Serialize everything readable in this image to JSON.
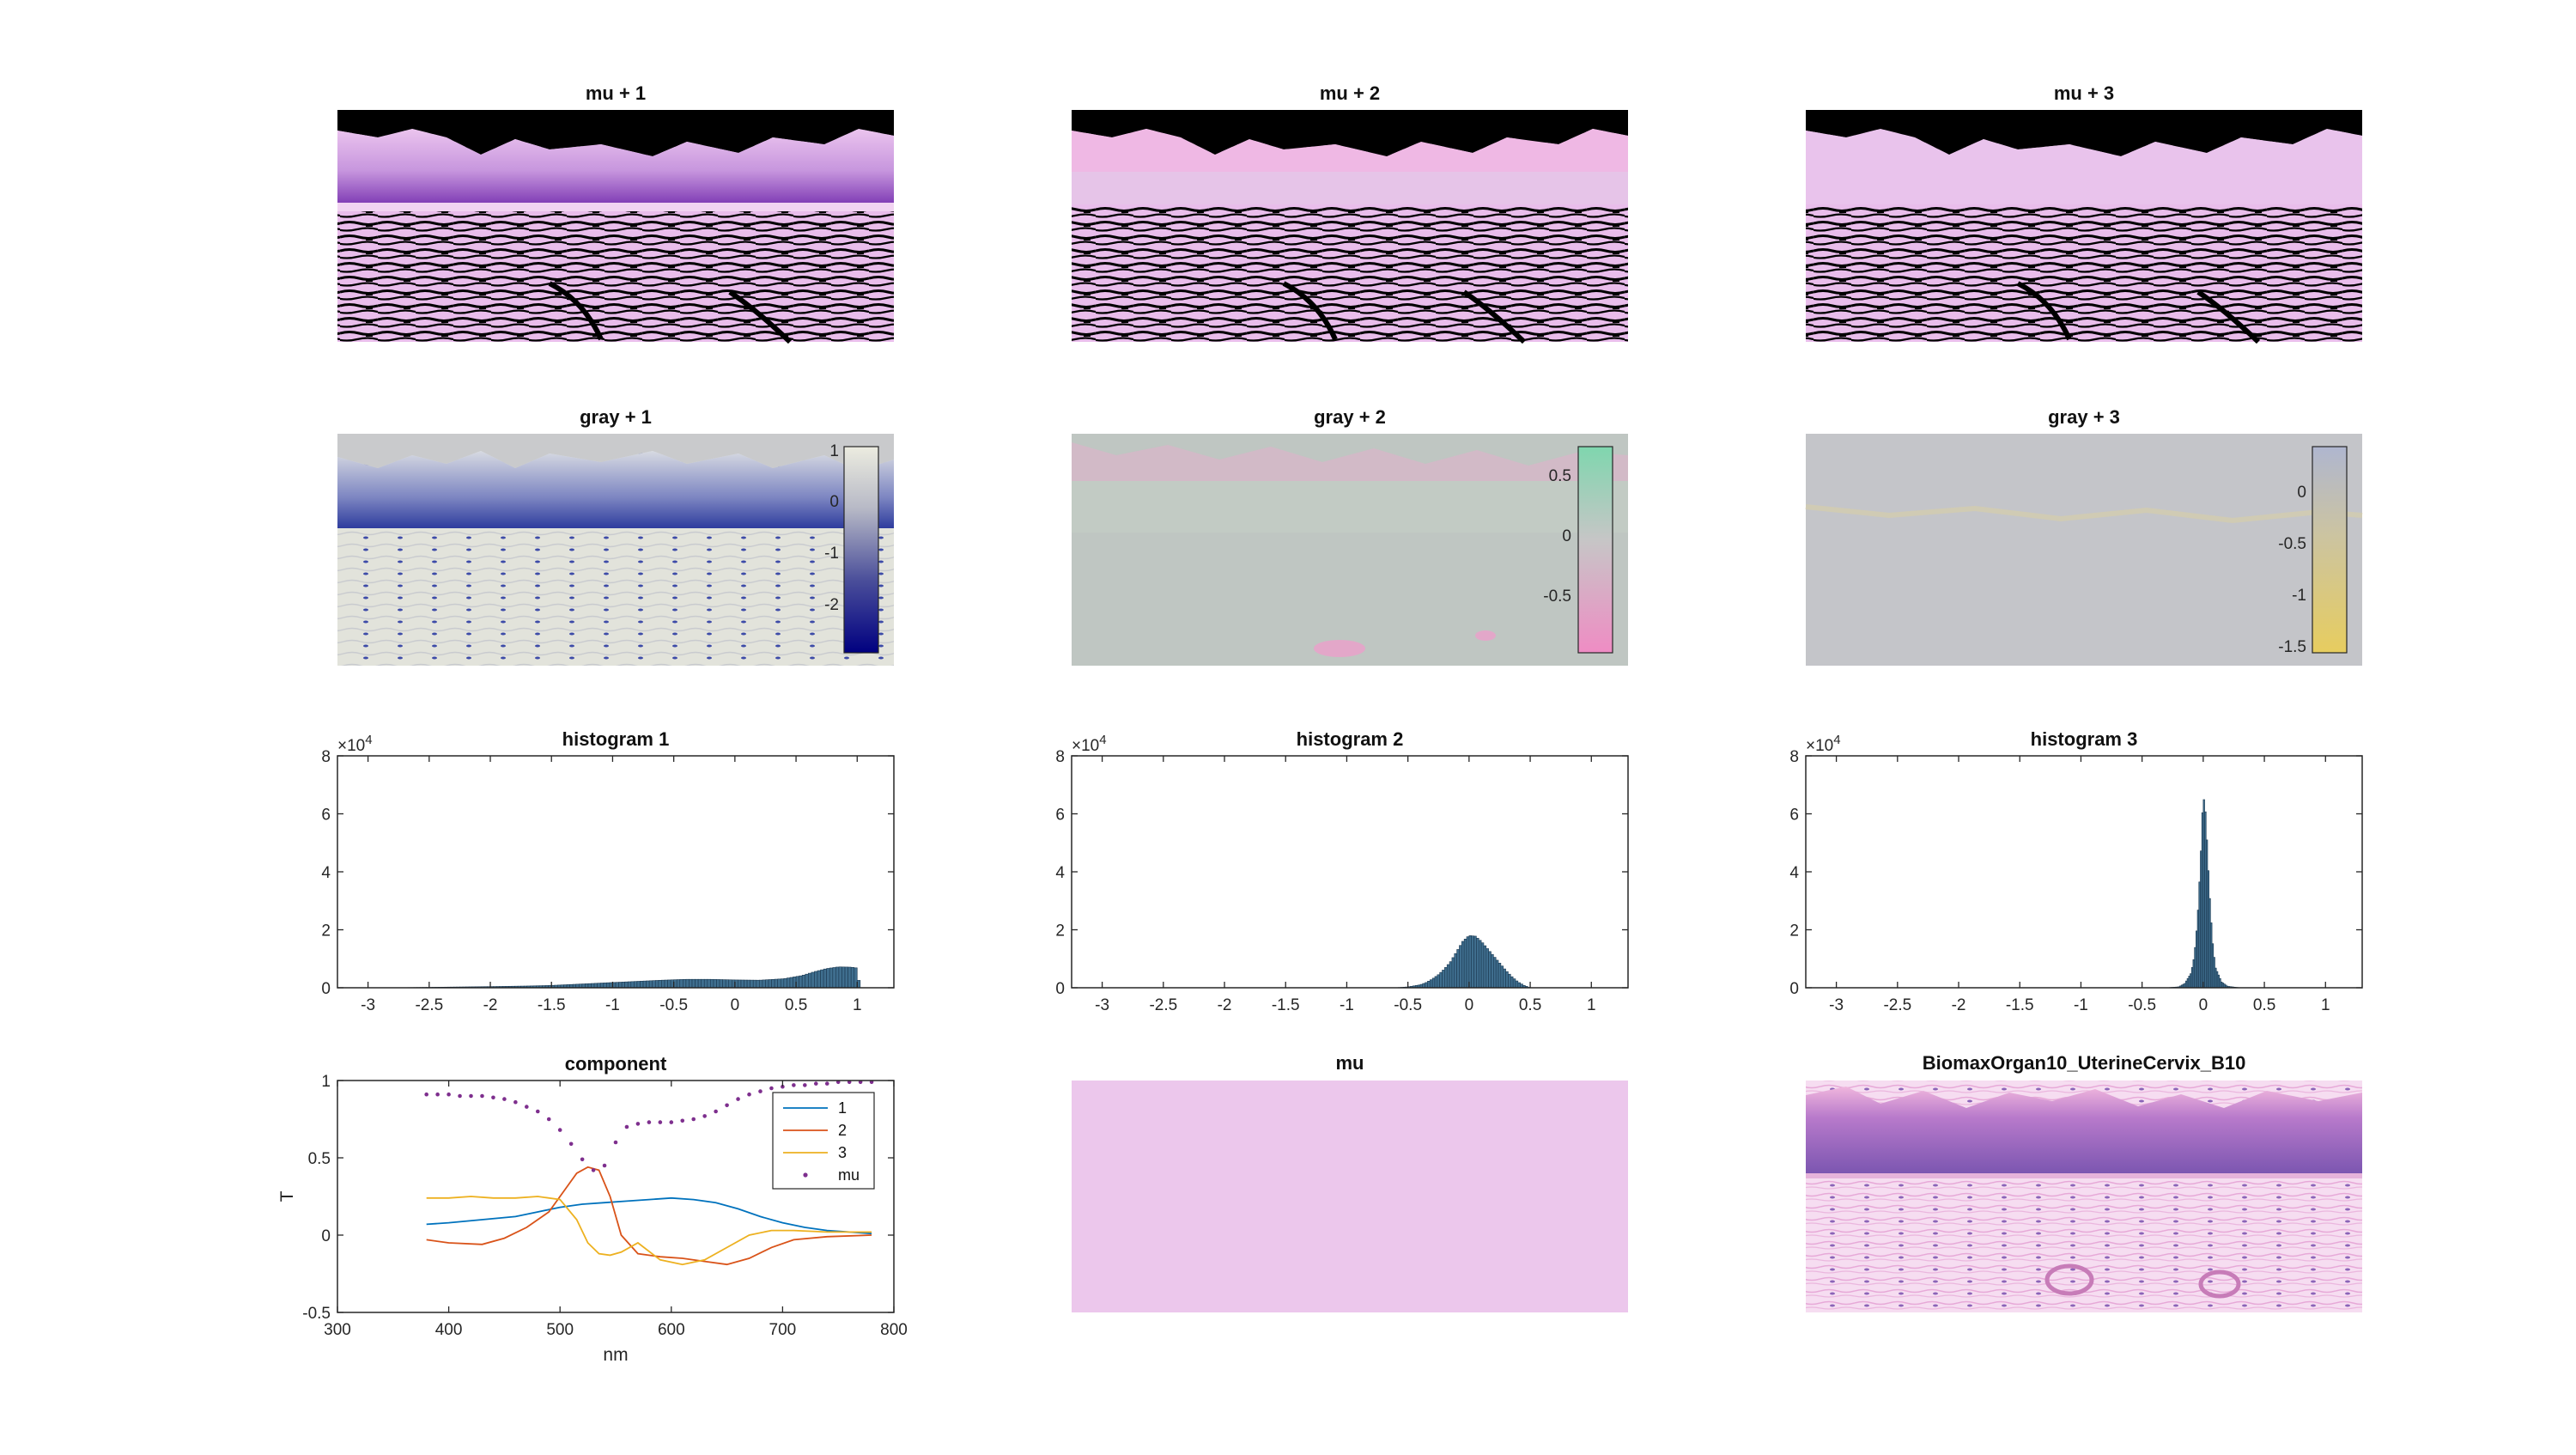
{
  "window": {
    "background": "#ffffff"
  },
  "colors": {
    "series1": "#0072BD",
    "series2": "#D95319",
    "series3": "#EDB120",
    "mu": "#7E2F8E",
    "hist_bar": "#3F6E8E",
    "mu_fill": "#ECC7EC",
    "he_pink": "#EFB8E4",
    "he_purple": "#8E62C2",
    "gray1_low": "#000080",
    "gray1_high": "#ECECE0",
    "gray2_low": "#EF8CC4",
    "gray2_mid": "#C6C6C6",
    "gray2_high": "#7FD6AE",
    "gray3_low": "#E7CD5F",
    "gray3_high": "#AFB6CF"
  },
  "panels": {
    "mu_plus_1": {
      "title": "mu + 1"
    },
    "mu_plus_2": {
      "title": "mu + 2"
    },
    "mu_plus_3": {
      "title": "mu + 3"
    },
    "gray_plus_1": {
      "title": "gray + 1",
      "colorbar_ticks": [
        "1",
        "0",
        "-1",
        "-2"
      ]
    },
    "gray_plus_2": {
      "title": "gray + 2",
      "colorbar_ticks": [
        "0.5",
        "0",
        "-0.5"
      ]
    },
    "gray_plus_3": {
      "title": "gray + 3",
      "colorbar_ticks": [
        "0",
        "-0.5",
        "-1",
        "-1.5"
      ]
    },
    "component": {
      "title": "component"
    },
    "mu": {
      "title": "mu"
    },
    "image": {
      "title": "BiomaxOrgan10_UterineCervix_B10"
    }
  },
  "chart_data": [
    {
      "type": "bar",
      "id": "histogram1",
      "title": "histogram 1",
      "xlim": [
        -3.25,
        1.3
      ],
      "ylim": [
        0,
        80000
      ],
      "y_exponent_label": "×10",
      "y_exponent": "4",
      "xticks": [
        -3,
        -2.5,
        -2,
        -1.5,
        -1,
        -0.5,
        0,
        0.5,
        1
      ],
      "xtick_labels": [
        "-3",
        "-2.5",
        "-2",
        "-1.5",
        "-1",
        "-0.5",
        "0",
        "0.5",
        "1"
      ],
      "yticks": [
        0,
        20000,
        40000,
        60000,
        80000
      ],
      "ytick_labels": [
        "0",
        "2",
        "4",
        "6",
        "8"
      ],
      "bin_width": 0.025,
      "x": [
        -2.8,
        -2.5,
        -2.2,
        -2.0,
        -1.7,
        -1.5,
        -1.3,
        -1.1,
        -1.0,
        -0.8,
        -0.6,
        -0.4,
        -0.2,
        0.0,
        0.2,
        0.4,
        0.55,
        0.65,
        0.75,
        0.85,
        0.95,
        1.0,
        1.02
      ],
      "values": [
        0,
        150,
        300,
        400,
        600,
        800,
        1200,
        1600,
        1800,
        2200,
        2600,
        2900,
        2900,
        2700,
        2600,
        3100,
        4200,
        5500,
        6600,
        7200,
        7100,
        6800,
        0
      ]
    },
    {
      "type": "bar",
      "id": "histogram2",
      "title": "histogram 2",
      "xlim": [
        -3.25,
        1.3
      ],
      "ylim": [
        0,
        80000
      ],
      "y_exponent_label": "×10",
      "y_exponent": "4",
      "xticks": [
        -3,
        -2.5,
        -2,
        -1.5,
        -1,
        -0.5,
        0,
        0.5,
        1
      ],
      "xtick_labels": [
        "-3",
        "-2.5",
        "-2",
        "-1.5",
        "-1",
        "-0.5",
        "0",
        "0.5",
        "1"
      ],
      "yticks": [
        0,
        20000,
        40000,
        60000,
        80000
      ],
      "ytick_labels": [
        "0",
        "2",
        "4",
        "6",
        "8"
      ],
      "bin_width": 0.02,
      "x": [
        -0.6,
        -0.5,
        -0.4,
        -0.35,
        -0.3,
        -0.25,
        -0.2,
        -0.15,
        -0.1,
        -0.05,
        0.0,
        0.05,
        0.1,
        0.15,
        0.2,
        0.25,
        0.3,
        0.35,
        0.4,
        0.45,
        0.5
      ],
      "values": [
        0,
        300,
        1000,
        1800,
        3000,
        4500,
        6500,
        9000,
        12500,
        16000,
        18000,
        17800,
        16000,
        13500,
        11000,
        8500,
        6000,
        3800,
        2000,
        800,
        0
      ]
    },
    {
      "type": "bar",
      "id": "histogram3",
      "title": "histogram 3",
      "xlim": [
        -3.25,
        1.3
      ],
      "ylim": [
        0,
        80000
      ],
      "y_exponent_label": "×10",
      "y_exponent": "4",
      "xticks": [
        -3,
        -2.5,
        -2,
        -1.5,
        -1,
        -0.5,
        0,
        0.5,
        1
      ],
      "xtick_labels": [
        "-3",
        "-2.5",
        "-2",
        "-1.5",
        "-1",
        "-0.5",
        "0",
        "0.5",
        "1"
      ],
      "yticks": [
        0,
        20000,
        40000,
        60000,
        80000
      ],
      "ytick_labels": [
        "0",
        "2",
        "4",
        "6",
        "8"
      ],
      "bin_width": 0.012,
      "x": [
        -0.3,
        -0.2,
        -0.15,
        -0.1,
        -0.08,
        -0.06,
        -0.04,
        -0.02,
        0.0,
        0.02,
        0.04,
        0.06,
        0.08,
        0.1,
        0.15,
        0.2,
        0.3
      ],
      "values": [
        0,
        300,
        1500,
        5000,
        9000,
        16000,
        28000,
        45000,
        67000,
        60000,
        42000,
        26000,
        14000,
        7000,
        2000,
        500,
        0
      ]
    },
    {
      "type": "line",
      "id": "component",
      "title": "component",
      "xlabel": "nm",
      "ylabel": "T",
      "xlim": [
        300,
        800
      ],
      "ylim": [
        -0.5,
        1
      ],
      "xticks": [
        300,
        400,
        500,
        600,
        700,
        800
      ],
      "yticks": [
        -0.5,
        0,
        0.5,
        1
      ],
      "xtick_labels": [
        "300",
        "400",
        "500",
        "600",
        "700",
        "800"
      ],
      "ytick_labels": [
        "-0.5",
        "0",
        "0.5",
        "1"
      ],
      "legend_position": "top-right",
      "series": [
        {
          "name": "1",
          "style": "line",
          "x": [
            380,
            400,
            430,
            460,
            480,
            500,
            520,
            540,
            560,
            580,
            600,
            620,
            640,
            660,
            680,
            700,
            720,
            740,
            760,
            780
          ],
          "y": [
            0.07,
            0.08,
            0.1,
            0.12,
            0.15,
            0.18,
            0.2,
            0.21,
            0.22,
            0.23,
            0.24,
            0.23,
            0.21,
            0.17,
            0.12,
            0.08,
            0.05,
            0.03,
            0.02,
            0.01
          ]
        },
        {
          "name": "2",
          "style": "line",
          "x": [
            380,
            400,
            430,
            450,
            470,
            490,
            505,
            515,
            525,
            535,
            545,
            555,
            570,
            590,
            610,
            630,
            650,
            670,
            690,
            710,
            740,
            780
          ],
          "y": [
            -0.03,
            -0.05,
            -0.06,
            -0.02,
            0.05,
            0.15,
            0.3,
            0.4,
            0.44,
            0.42,
            0.25,
            0.0,
            -0.12,
            -0.14,
            -0.15,
            -0.17,
            -0.19,
            -0.15,
            -0.08,
            -0.03,
            -0.01,
            0.0
          ]
        },
        {
          "name": "3",
          "style": "line",
          "x": [
            380,
            400,
            420,
            440,
            460,
            480,
            500,
            515,
            525,
            535,
            545,
            555,
            570,
            590,
            610,
            630,
            650,
            670,
            690,
            710,
            740,
            780
          ],
          "y": [
            0.24,
            0.24,
            0.25,
            0.24,
            0.24,
            0.25,
            0.23,
            0.1,
            -0.05,
            -0.12,
            -0.13,
            -0.11,
            -0.05,
            -0.16,
            -0.19,
            -0.16,
            -0.08,
            0.0,
            0.03,
            0.03,
            0.02,
            0.02
          ]
        },
        {
          "name": "mu",
          "style": "dots",
          "x": [
            380,
            390,
            400,
            410,
            420,
            430,
            440,
            450,
            460,
            470,
            480,
            490,
            500,
            510,
            520,
            530,
            540,
            550,
            560,
            570,
            580,
            590,
            600,
            610,
            620,
            630,
            640,
            650,
            660,
            670,
            680,
            690,
            700,
            710,
            720,
            730,
            740,
            750,
            760,
            770,
            780
          ],
          "y": [
            0.91,
            0.91,
            0.91,
            0.9,
            0.9,
            0.9,
            0.89,
            0.88,
            0.86,
            0.83,
            0.8,
            0.75,
            0.68,
            0.59,
            0.49,
            0.42,
            0.45,
            0.6,
            0.7,
            0.72,
            0.73,
            0.73,
            0.73,
            0.74,
            0.75,
            0.77,
            0.8,
            0.84,
            0.88,
            0.91,
            0.93,
            0.95,
            0.96,
            0.97,
            0.97,
            0.98,
            0.98,
            0.99,
            0.99,
            0.99,
            0.99
          ]
        }
      ]
    }
  ]
}
